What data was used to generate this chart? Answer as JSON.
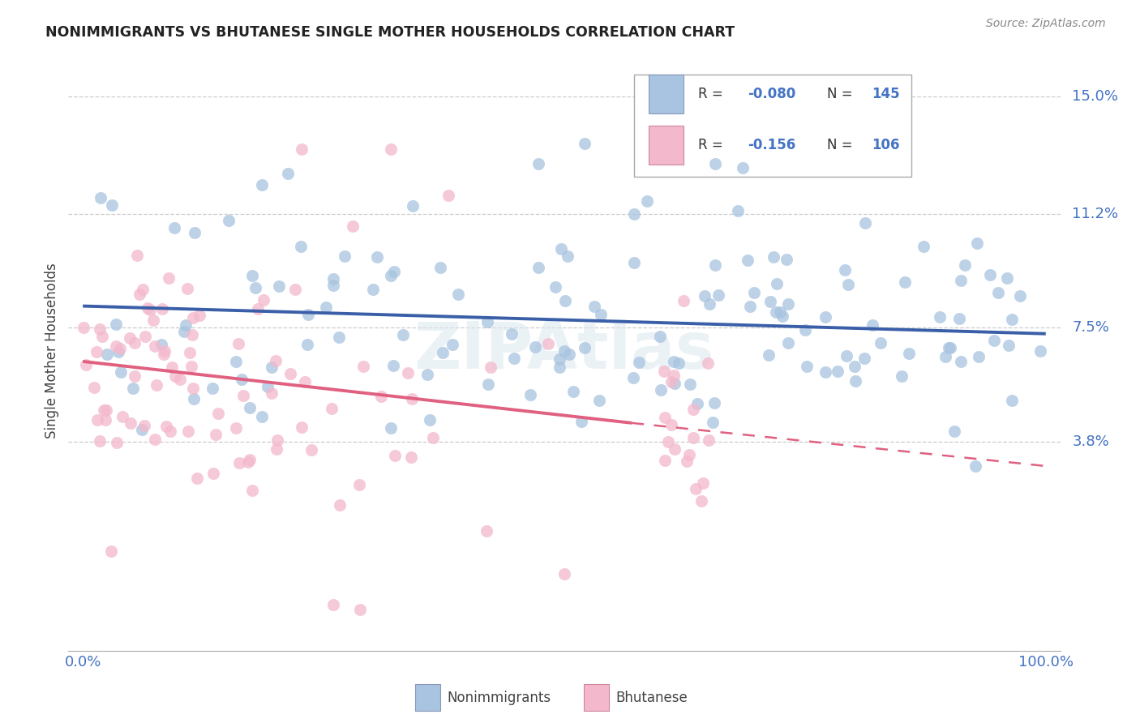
{
  "title": "NONIMMIGRANTS VS BHUTANESE SINGLE MOTHER HOUSEHOLDS CORRELATION CHART",
  "source": "Source: ZipAtlas.com",
  "ylabel": "Single Mother Households",
  "ytick_labels": [
    "3.8%",
    "7.5%",
    "11.2%",
    "15.0%"
  ],
  "ytick_values": [
    0.038,
    0.075,
    0.112,
    0.15
  ],
  "xlim": [
    0.0,
    1.0
  ],
  "ylim": [
    -0.03,
    0.165
  ],
  "nonimm_color": "#a8c4e0",
  "bhut_color": "#f4b8cc",
  "nonimm_line_color": "#3a5fa8",
  "bhut_line_color": "#e06080",
  "text_color": "#4472c4",
  "watermark": "ZIPAtlas",
  "nonimm_line_start": 0.082,
  "nonimm_line_end": 0.073,
  "bhut_line_start": 0.064,
  "bhut_line_solid_end_x": 0.57,
  "bhut_line_solid_end_y": 0.044,
  "bhut_line_dash_end_y": 0.03
}
